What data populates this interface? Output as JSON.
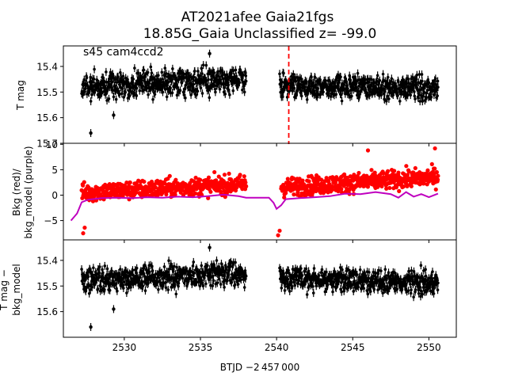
{
  "chart_data": {
    "type": "scatter",
    "title_line1": "AT2021afee  Gaia21fgs",
    "title_line2": "18.85G_Gaia Unclassified z= -99.0",
    "xlabel": "BTJD −2 457 000",
    "xlim": [
      2526.0,
      2551.8
    ],
    "xticks": [
      "2530",
      "2535",
      "2540",
      "2545",
      "2550"
    ],
    "xtick_values": [
      2530,
      2535,
      2540,
      2545,
      2550
    ],
    "panels": [
      {
        "id": "tmag",
        "ylabel": "T mag",
        "ylim": [
          15.7,
          15.32
        ],
        "yticks": [
          "15.4",
          "15.5",
          "15.6",
          "15.7"
        ],
        "ytick_values": [
          15.4,
          15.5,
          15.6,
          15.7
        ],
        "annotation": "s45 cam4ccd2",
        "event_line_x": 2540.8,
        "series": [
          {
            "color": "#000000",
            "kind": "errorbar-points",
            "segments": [
              {
                "x_start": 2527.2,
                "x_end": 2538.0,
                "center_start": 15.48,
                "center_end": 15.45,
                "spread": 0.05
              },
              {
                "x_start": 2540.2,
                "x_end": 2550.6,
                "center_start": 15.47,
                "center_end": 15.49,
                "spread": 0.045
              }
            ],
            "outliers": [
              [
                2527.8,
                15.66
              ],
              [
                2535.6,
                15.35
              ],
              [
                2529.3,
                15.59
              ]
            ]
          }
        ]
      },
      {
        "id": "bkg",
        "ylabel_line1": "Bkg (red)/",
        "ylabel_line2": "bkg_model (purple)",
        "ylim": [
          -8.8,
          10.2
        ],
        "yticks": [
          "−5",
          "0",
          "5",
          "10"
        ],
        "ytick_values": [
          -5,
          0,
          5,
          10
        ],
        "series": [
          {
            "name": "Bkg",
            "color": "#ff0000",
            "kind": "points",
            "segments": [
              {
                "x_start": 2527.2,
                "x_end": 2538.0,
                "center_start": 0.5,
                "center_end": 2.2,
                "spread": 1.8
              },
              {
                "x_start": 2540.3,
                "x_end": 2550.6,
                "center_start": 1.5,
                "center_end": 3.6,
                "spread": 1.8
              }
            ],
            "outliers": [
              [
                2527.3,
                -7.5
              ],
              [
                2527.4,
                -6.4
              ],
              [
                2540.1,
                -7.9
              ],
              [
                2540.2,
                -7.0
              ],
              [
                2550.4,
                9.2
              ],
              [
                2546.0,
                8.8
              ]
            ]
          },
          {
            "name": "bkg_model",
            "color": "#bf00bf",
            "kind": "line",
            "points": [
              [
                2526.5,
                -5.0
              ],
              [
                2526.9,
                -3.6
              ],
              [
                2527.2,
                -1.4
              ],
              [
                2527.6,
                -0.9
              ],
              [
                2528.5,
                -0.6
              ],
              [
                2529.5,
                -0.5
              ],
              [
                2530.5,
                -0.6
              ],
              [
                2531.5,
                -0.4
              ],
              [
                2532.5,
                -0.5
              ],
              [
                2533.5,
                -0.3
              ],
              [
                2534.5,
                -0.4
              ],
              [
                2535.5,
                -0.2
              ],
              [
                2536.5,
                0.1
              ],
              [
                2537.5,
                -0.2
              ],
              [
                2538.0,
                -0.5
              ],
              [
                2539.5,
                -0.5
              ],
              [
                2539.8,
                -1.5
              ],
              [
                2540.0,
                -2.7
              ],
              [
                2540.3,
                -2.0
              ],
              [
                2540.6,
                -0.8
              ],
              [
                2541.5,
                -0.6
              ],
              [
                2542.5,
                -0.4
              ],
              [
                2543.5,
                -0.2
              ],
              [
                2544.5,
                0.3
              ],
              [
                2545.5,
                0.2
              ],
              [
                2546.5,
                0.6
              ],
              [
                2547.5,
                0.2
              ],
              [
                2548.0,
                -0.5
              ],
              [
                2548.5,
                0.6
              ],
              [
                2549.0,
                -0.3
              ],
              [
                2549.5,
                0.2
              ],
              [
                2550.0,
                -0.4
              ],
              [
                2550.6,
                0.3
              ]
            ]
          }
        ]
      },
      {
        "id": "resid",
        "ylabel_line1": "T mag −",
        "ylabel_line2": "bkg_model",
        "ylim": [
          15.7,
          15.32
        ],
        "yticks": [
          "15.4",
          "15.5",
          "15.6"
        ],
        "ytick_values": [
          15.4,
          15.5,
          15.6
        ],
        "series": [
          {
            "color": "#000000",
            "kind": "errorbar-points",
            "segments": [
              {
                "x_start": 2527.2,
                "x_end": 2538.0,
                "center_start": 15.48,
                "center_end": 15.45,
                "spread": 0.05
              },
              {
                "x_start": 2540.2,
                "x_end": 2550.6,
                "center_start": 15.47,
                "center_end": 15.49,
                "spread": 0.045
              }
            ],
            "outliers": [
              [
                2527.8,
                15.66
              ],
              [
                2535.6,
                15.35
              ],
              [
                2529.3,
                15.59
              ]
            ]
          }
        ]
      }
    ],
    "grid": false,
    "legend": "none"
  }
}
